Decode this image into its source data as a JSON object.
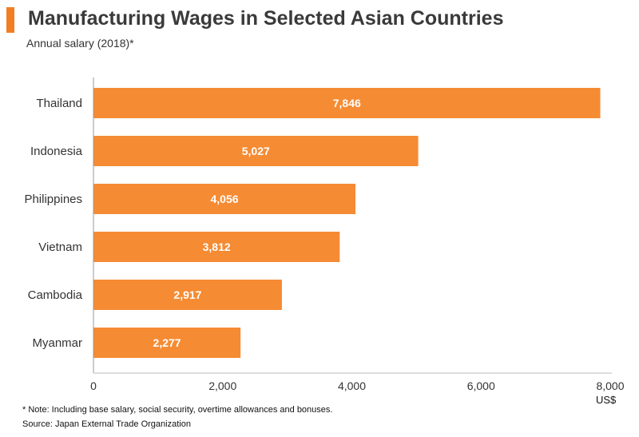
{
  "chart_data": {
    "type": "bar",
    "orientation": "horizontal",
    "title": "Manufacturing Wages in Selected Asian Countries",
    "subtitle": "Annual salary (2018)*",
    "categories": [
      "Thailand",
      "Indonesia",
      "Philippines",
      "Vietnam",
      "Cambodia",
      "Myanmar"
    ],
    "values": [
      7846,
      5027,
      4056,
      3812,
      2917,
      2277
    ],
    "data_labels": [
      "7,846",
      "5,027",
      "4,056",
      "3,812",
      "2,917",
      "2,277"
    ],
    "xlim": [
      0,
      8000
    ],
    "x_ticks": [
      0,
      2000,
      4000,
      6000,
      8000
    ],
    "x_tick_labels": [
      "0",
      "2,000",
      "4,000",
      "6,000",
      "8,000"
    ],
    "xlabel": "US$",
    "grid": false,
    "bar_color": "#f58b33",
    "accent_color": "#f07f23"
  },
  "footer": {
    "note": "* Note: Including base salary, social security, overtime allowances and bonuses.",
    "source": "Source: Japan External Trade Organization"
  }
}
